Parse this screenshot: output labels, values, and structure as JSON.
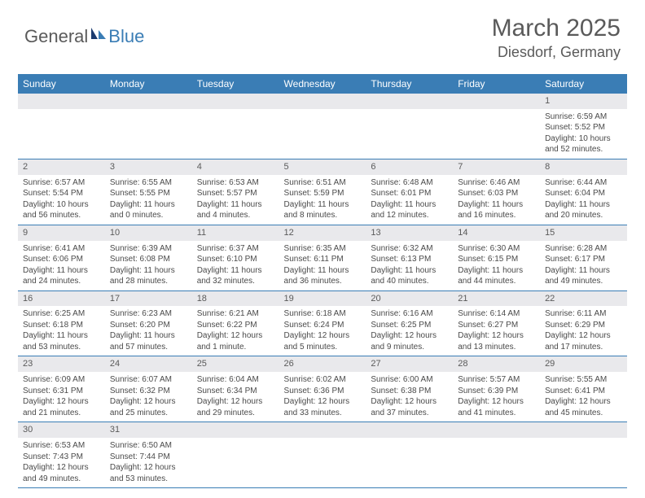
{
  "logo": {
    "text1": "General",
    "text2": "Blue"
  },
  "header": {
    "month": "March 2025",
    "location": "Diesdorf, Germany"
  },
  "colors": {
    "header_bg": "#3a7db5",
    "header_text": "#ffffff",
    "daybar_bg": "#e9e9ec",
    "text": "#4a4a4a",
    "row_border": "#3a7db5"
  },
  "dayHeaders": [
    "Sunday",
    "Monday",
    "Tuesday",
    "Wednesday",
    "Thursday",
    "Friday",
    "Saturday"
  ],
  "weeks": [
    [
      null,
      null,
      null,
      null,
      null,
      null,
      {
        "n": "1",
        "sr": "Sunrise: 6:59 AM",
        "ss": "Sunset: 5:52 PM",
        "dl": "Daylight: 10 hours and 52 minutes."
      }
    ],
    [
      {
        "n": "2",
        "sr": "Sunrise: 6:57 AM",
        "ss": "Sunset: 5:54 PM",
        "dl": "Daylight: 10 hours and 56 minutes."
      },
      {
        "n": "3",
        "sr": "Sunrise: 6:55 AM",
        "ss": "Sunset: 5:55 PM",
        "dl": "Daylight: 11 hours and 0 minutes."
      },
      {
        "n": "4",
        "sr": "Sunrise: 6:53 AM",
        "ss": "Sunset: 5:57 PM",
        "dl": "Daylight: 11 hours and 4 minutes."
      },
      {
        "n": "5",
        "sr": "Sunrise: 6:51 AM",
        "ss": "Sunset: 5:59 PM",
        "dl": "Daylight: 11 hours and 8 minutes."
      },
      {
        "n": "6",
        "sr": "Sunrise: 6:48 AM",
        "ss": "Sunset: 6:01 PM",
        "dl": "Daylight: 11 hours and 12 minutes."
      },
      {
        "n": "7",
        "sr": "Sunrise: 6:46 AM",
        "ss": "Sunset: 6:03 PM",
        "dl": "Daylight: 11 hours and 16 minutes."
      },
      {
        "n": "8",
        "sr": "Sunrise: 6:44 AM",
        "ss": "Sunset: 6:04 PM",
        "dl": "Daylight: 11 hours and 20 minutes."
      }
    ],
    [
      {
        "n": "9",
        "sr": "Sunrise: 6:41 AM",
        "ss": "Sunset: 6:06 PM",
        "dl": "Daylight: 11 hours and 24 minutes."
      },
      {
        "n": "10",
        "sr": "Sunrise: 6:39 AM",
        "ss": "Sunset: 6:08 PM",
        "dl": "Daylight: 11 hours and 28 minutes."
      },
      {
        "n": "11",
        "sr": "Sunrise: 6:37 AM",
        "ss": "Sunset: 6:10 PM",
        "dl": "Daylight: 11 hours and 32 minutes."
      },
      {
        "n": "12",
        "sr": "Sunrise: 6:35 AM",
        "ss": "Sunset: 6:11 PM",
        "dl": "Daylight: 11 hours and 36 minutes."
      },
      {
        "n": "13",
        "sr": "Sunrise: 6:32 AM",
        "ss": "Sunset: 6:13 PM",
        "dl": "Daylight: 11 hours and 40 minutes."
      },
      {
        "n": "14",
        "sr": "Sunrise: 6:30 AM",
        "ss": "Sunset: 6:15 PM",
        "dl": "Daylight: 11 hours and 44 minutes."
      },
      {
        "n": "15",
        "sr": "Sunrise: 6:28 AM",
        "ss": "Sunset: 6:17 PM",
        "dl": "Daylight: 11 hours and 49 minutes."
      }
    ],
    [
      {
        "n": "16",
        "sr": "Sunrise: 6:25 AM",
        "ss": "Sunset: 6:18 PM",
        "dl": "Daylight: 11 hours and 53 minutes."
      },
      {
        "n": "17",
        "sr": "Sunrise: 6:23 AM",
        "ss": "Sunset: 6:20 PM",
        "dl": "Daylight: 11 hours and 57 minutes."
      },
      {
        "n": "18",
        "sr": "Sunrise: 6:21 AM",
        "ss": "Sunset: 6:22 PM",
        "dl": "Daylight: 12 hours and 1 minute."
      },
      {
        "n": "19",
        "sr": "Sunrise: 6:18 AM",
        "ss": "Sunset: 6:24 PM",
        "dl": "Daylight: 12 hours and 5 minutes."
      },
      {
        "n": "20",
        "sr": "Sunrise: 6:16 AM",
        "ss": "Sunset: 6:25 PM",
        "dl": "Daylight: 12 hours and 9 minutes."
      },
      {
        "n": "21",
        "sr": "Sunrise: 6:14 AM",
        "ss": "Sunset: 6:27 PM",
        "dl": "Daylight: 12 hours and 13 minutes."
      },
      {
        "n": "22",
        "sr": "Sunrise: 6:11 AM",
        "ss": "Sunset: 6:29 PM",
        "dl": "Daylight: 12 hours and 17 minutes."
      }
    ],
    [
      {
        "n": "23",
        "sr": "Sunrise: 6:09 AM",
        "ss": "Sunset: 6:31 PM",
        "dl": "Daylight: 12 hours and 21 minutes."
      },
      {
        "n": "24",
        "sr": "Sunrise: 6:07 AM",
        "ss": "Sunset: 6:32 PM",
        "dl": "Daylight: 12 hours and 25 minutes."
      },
      {
        "n": "25",
        "sr": "Sunrise: 6:04 AM",
        "ss": "Sunset: 6:34 PM",
        "dl": "Daylight: 12 hours and 29 minutes."
      },
      {
        "n": "26",
        "sr": "Sunrise: 6:02 AM",
        "ss": "Sunset: 6:36 PM",
        "dl": "Daylight: 12 hours and 33 minutes."
      },
      {
        "n": "27",
        "sr": "Sunrise: 6:00 AM",
        "ss": "Sunset: 6:38 PM",
        "dl": "Daylight: 12 hours and 37 minutes."
      },
      {
        "n": "28",
        "sr": "Sunrise: 5:57 AM",
        "ss": "Sunset: 6:39 PM",
        "dl": "Daylight: 12 hours and 41 minutes."
      },
      {
        "n": "29",
        "sr": "Sunrise: 5:55 AM",
        "ss": "Sunset: 6:41 PM",
        "dl": "Daylight: 12 hours and 45 minutes."
      }
    ],
    [
      {
        "n": "30",
        "sr": "Sunrise: 6:53 AM",
        "ss": "Sunset: 7:43 PM",
        "dl": "Daylight: 12 hours and 49 minutes."
      },
      {
        "n": "31",
        "sr": "Sunrise: 6:50 AM",
        "ss": "Sunset: 7:44 PM",
        "dl": "Daylight: 12 hours and 53 minutes."
      },
      null,
      null,
      null,
      null,
      null
    ]
  ]
}
